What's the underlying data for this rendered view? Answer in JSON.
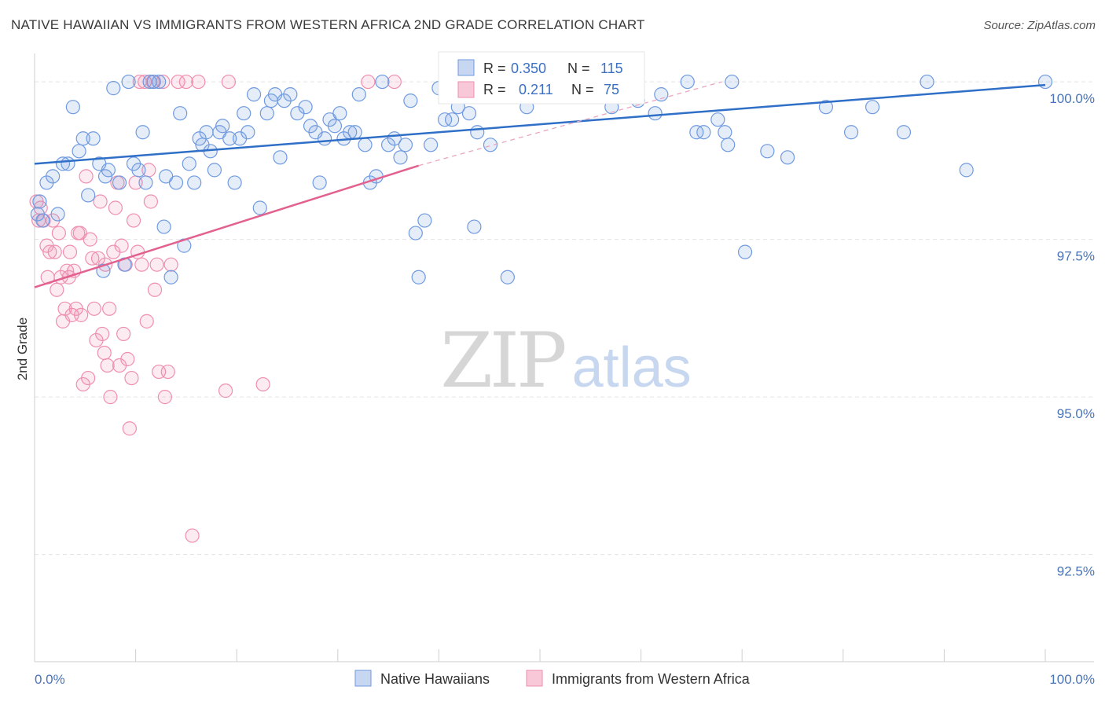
{
  "header": {
    "title": "NATIVE HAWAIIAN VS IMMIGRANTS FROM WESTERN AFRICA 2ND GRADE CORRELATION CHART",
    "source": "Source: ZipAtlas.com"
  },
  "watermark": {
    "part1": "ZIP",
    "part2": "atlas"
  },
  "colors": {
    "blue": "#6f9ae0",
    "blue_line": "#2f6fc7",
    "pink": "#ef8fb0",
    "pink_line": "#e2618f",
    "axis_text": "#4a74b8",
    "grid": "#e3e3e3"
  },
  "legend_top": {
    "rows": [
      {
        "series": "blue",
        "r_label": "R =",
        "r_value": "0.350",
        "n_label": "N =",
        "n_value": "115"
      },
      {
        "series": "pink",
        "r_label": "R =",
        "r_value": "0.211",
        "n_label": "N =",
        "n_value": "75"
      }
    ]
  },
  "legend_bottom": {
    "items": [
      {
        "series": "blue",
        "label": "Native Hawaiians"
      },
      {
        "series": "pink",
        "label": "Immigrants from Western Africa"
      }
    ]
  },
  "chart_data": {
    "type": "scatter",
    "title": "NATIVE HAWAIIAN VS IMMIGRANTS FROM WESTERN AFRICA 2ND GRADE CORRELATION CHART",
    "xlabel": "",
    "ylabel": "2nd Grade",
    "xlim": [
      0,
      100
    ],
    "ylim": [
      90.8,
      100.4
    ],
    "x_tick_labels": [
      "0.0%",
      "100.0%"
    ],
    "y_ticks": [
      {
        "value": 92.5,
        "label": "92.5%"
      },
      {
        "value": 95.0,
        "label": "95.0%"
      },
      {
        "value": 97.5,
        "label": "97.5%"
      },
      {
        "value": 100.0,
        "label": "100.0%"
      }
    ],
    "grid": true,
    "legend_placement": "top-center",
    "series": [
      {
        "name": "Native Hawaiians",
        "color": "#6f9ae0",
        "R": 0.35,
        "N": 115,
        "trend": {
          "x": [
            0,
            100
          ],
          "y": [
            98.7,
            99.95
          ],
          "style": "solid"
        },
        "points": [
          [
            0.3,
            97.9
          ],
          [
            0.5,
            98.1
          ],
          [
            0.8,
            97.8
          ],
          [
            1.2,
            98.4
          ],
          [
            1.8,
            98.5
          ],
          [
            2.3,
            97.9
          ],
          [
            2.8,
            98.7
          ],
          [
            3.3,
            98.7
          ],
          [
            3.8,
            99.6
          ],
          [
            4.4,
            98.9
          ],
          [
            4.8,
            99.1
          ],
          [
            5.3,
            98.2
          ],
          [
            5.8,
            99.1
          ],
          [
            6.4,
            98.7
          ],
          [
            6.8,
            97.0
          ],
          [
            7.0,
            98.5
          ],
          [
            7.3,
            98.6
          ],
          [
            7.8,
            99.9
          ],
          [
            8.4,
            98.4
          ],
          [
            8.9,
            97.1
          ],
          [
            9.3,
            100.0
          ],
          [
            9.8,
            98.7
          ],
          [
            10.3,
            98.6
          ],
          [
            10.7,
            99.2
          ],
          [
            11.0,
            98.4
          ],
          [
            11.4,
            100.0
          ],
          [
            11.8,
            100.0
          ],
          [
            12.3,
            100.0
          ],
          [
            12.8,
            97.7
          ],
          [
            13.0,
            98.5
          ],
          [
            13.5,
            96.9
          ],
          [
            14.0,
            98.4
          ],
          [
            14.4,
            99.5
          ],
          [
            14.8,
            97.4
          ],
          [
            15.3,
            98.7
          ],
          [
            15.8,
            98.4
          ],
          [
            16.3,
            99.1
          ],
          [
            16.6,
            99.0
          ],
          [
            17.0,
            99.2
          ],
          [
            17.4,
            98.9
          ],
          [
            17.8,
            98.6
          ],
          [
            18.3,
            99.2
          ],
          [
            18.6,
            99.3
          ],
          [
            19.3,
            99.1
          ],
          [
            19.8,
            98.4
          ],
          [
            20.3,
            99.1
          ],
          [
            20.7,
            99.5
          ],
          [
            21.1,
            99.2
          ],
          [
            21.7,
            99.8
          ],
          [
            22.3,
            98.0
          ],
          [
            23.0,
            99.5
          ],
          [
            23.4,
            99.7
          ],
          [
            23.8,
            99.8
          ],
          [
            24.3,
            98.8
          ],
          [
            24.7,
            99.7
          ],
          [
            25.3,
            99.8
          ],
          [
            26.0,
            99.5
          ],
          [
            26.8,
            99.6
          ],
          [
            27.3,
            99.3
          ],
          [
            27.8,
            99.2
          ],
          [
            28.2,
            98.4
          ],
          [
            28.7,
            99.1
          ],
          [
            29.2,
            99.4
          ],
          [
            29.7,
            99.3
          ],
          [
            30.2,
            99.5
          ],
          [
            30.6,
            99.1
          ],
          [
            31.2,
            99.2
          ],
          [
            31.7,
            99.2
          ],
          [
            32.1,
            99.8
          ],
          [
            32.7,
            99.0
          ],
          [
            33.2,
            98.4
          ],
          [
            33.8,
            98.5
          ],
          [
            34.4,
            100.0
          ],
          [
            35.0,
            99.0
          ],
          [
            35.6,
            99.1
          ],
          [
            36.2,
            98.8
          ],
          [
            36.7,
            99.0
          ],
          [
            37.2,
            99.7
          ],
          [
            37.7,
            97.6
          ],
          [
            38.0,
            96.9
          ],
          [
            38.6,
            97.8
          ],
          [
            39.2,
            99.0
          ],
          [
            40.0,
            99.9
          ],
          [
            40.6,
            99.4
          ],
          [
            41.3,
            99.4
          ],
          [
            41.9,
            99.6
          ],
          [
            42.5,
            100.0
          ],
          [
            43.0,
            99.5
          ],
          [
            43.5,
            97.7
          ],
          [
            43.8,
            99.2
          ],
          [
            44.2,
            100.0
          ],
          [
            45.1,
            99.0
          ],
          [
            46.8,
            96.9
          ],
          [
            47.6,
            99.8
          ],
          [
            48.7,
            99.6
          ],
          [
            54.2,
            100.0
          ],
          [
            57.1,
            99.6
          ],
          [
            59.7,
            99.7
          ],
          [
            61.4,
            99.5
          ],
          [
            62.0,
            99.8
          ],
          [
            64.6,
            100.0
          ],
          [
            65.5,
            99.2
          ],
          [
            66.2,
            99.2
          ],
          [
            67.6,
            99.4
          ],
          [
            68.3,
            99.2
          ],
          [
            68.6,
            99.0
          ],
          [
            69.0,
            100.0
          ],
          [
            70.3,
            97.3
          ],
          [
            72.5,
            98.9
          ],
          [
            74.5,
            98.8
          ],
          [
            78.3,
            99.6
          ],
          [
            80.8,
            99.2
          ],
          [
            82.9,
            99.6
          ],
          [
            86.0,
            99.2
          ],
          [
            88.3,
            100.0
          ],
          [
            92.2,
            98.6
          ],
          [
            100.0,
            100.0
          ]
        ]
      },
      {
        "name": "Immigrants from Western Africa",
        "color": "#ef8fb0",
        "R": 0.211,
        "N": 75,
        "trend": {
          "x": [
            0,
            38.0
          ],
          "y": [
            96.74,
            98.67
          ],
          "style": "solid",
          "extension": {
            "x": [
              38.0,
              68.0
            ],
            "y": [
              98.67,
              100.0
            ],
            "style": "dashed"
          }
        },
        "points": [
          [
            0.2,
            98.1
          ],
          [
            0.4,
            97.8
          ],
          [
            0.6,
            98.0
          ],
          [
            0.9,
            97.8
          ],
          [
            1.2,
            97.4
          ],
          [
            1.3,
            96.9
          ],
          [
            1.5,
            97.3
          ],
          [
            1.8,
            97.8
          ],
          [
            2.0,
            97.3
          ],
          [
            2.2,
            96.7
          ],
          [
            2.4,
            97.6
          ],
          [
            2.6,
            96.9
          ],
          [
            2.8,
            96.2
          ],
          [
            3.0,
            96.4
          ],
          [
            3.2,
            97.0
          ],
          [
            3.4,
            96.9
          ],
          [
            3.5,
            97.3
          ],
          [
            3.7,
            96.3
          ],
          [
            3.9,
            97.0
          ],
          [
            4.1,
            96.4
          ],
          [
            4.3,
            97.6
          ],
          [
            4.5,
            97.6
          ],
          [
            4.6,
            96.3
          ],
          [
            4.8,
            95.2
          ],
          [
            5.1,
            98.5
          ],
          [
            5.3,
            95.3
          ],
          [
            5.5,
            97.5
          ],
          [
            5.7,
            97.2
          ],
          [
            5.9,
            96.4
          ],
          [
            6.1,
            95.9
          ],
          [
            6.3,
            97.2
          ],
          [
            6.5,
            98.1
          ],
          [
            6.7,
            96.0
          ],
          [
            6.9,
            95.7
          ],
          [
            7.0,
            97.1
          ],
          [
            7.2,
            95.5
          ],
          [
            7.4,
            96.4
          ],
          [
            7.5,
            95.0
          ],
          [
            7.8,
            97.3
          ],
          [
            8.0,
            98.0
          ],
          [
            8.2,
            98.4
          ],
          [
            8.4,
            95.5
          ],
          [
            8.6,
            97.4
          ],
          [
            8.8,
            96.0
          ],
          [
            9.0,
            97.1
          ],
          [
            9.2,
            95.6
          ],
          [
            9.4,
            94.5
          ],
          [
            9.6,
            95.3
          ],
          [
            9.8,
            97.8
          ],
          [
            10.0,
            98.4
          ],
          [
            10.2,
            97.3
          ],
          [
            10.4,
            100.0
          ],
          [
            10.6,
            97.1
          ],
          [
            10.9,
            100.0
          ],
          [
            11.1,
            96.2
          ],
          [
            11.3,
            98.6
          ],
          [
            11.5,
            98.1
          ],
          [
            11.7,
            100.0
          ],
          [
            11.9,
            96.7
          ],
          [
            12.1,
            97.1
          ],
          [
            12.3,
            95.4
          ],
          [
            12.7,
            100.0
          ],
          [
            12.9,
            95.0
          ],
          [
            13.2,
            95.4
          ],
          [
            13.5,
            97.1
          ],
          [
            14.2,
            100.0
          ],
          [
            15.0,
            100.0
          ],
          [
            15.6,
            92.8
          ],
          [
            16.2,
            100.0
          ],
          [
            18.9,
            95.1
          ],
          [
            19.2,
            100.0
          ],
          [
            22.6,
            95.2
          ],
          [
            33.0,
            100.0
          ],
          [
            35.6,
            100.0
          ],
          [
            45.4,
            100.0
          ]
        ]
      }
    ]
  }
}
